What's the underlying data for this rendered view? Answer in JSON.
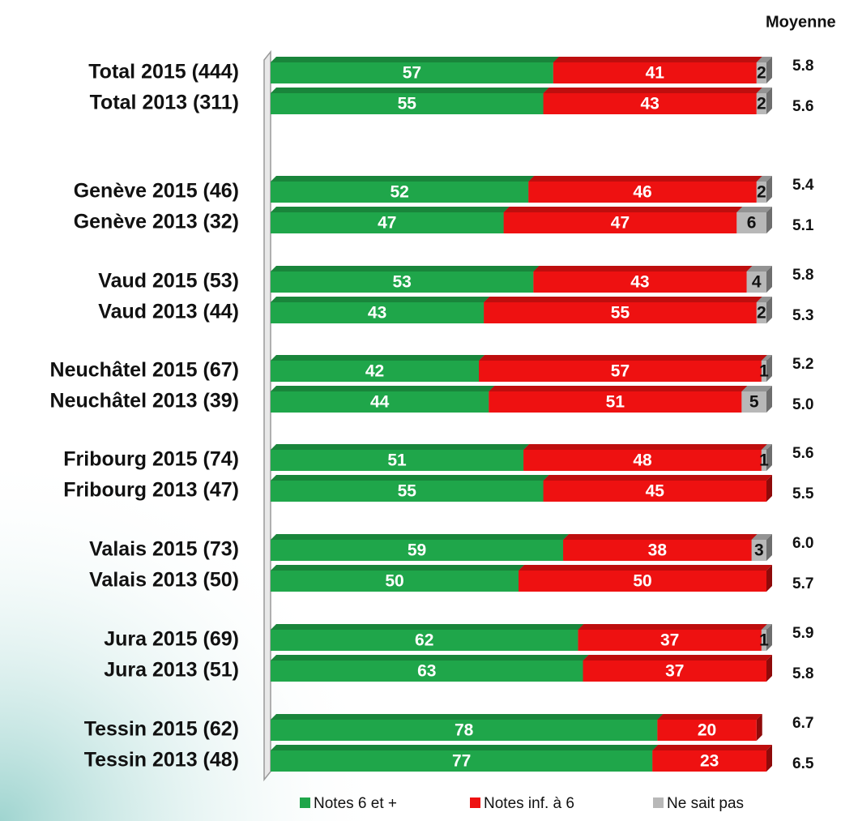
{
  "chart_data": {
    "type": "stacked_bar_horizontal",
    "categories": [
      "Total 2015 (444)",
      "Total 2013 (311)",
      "Genève 2015 (46)",
      "Genève 2013 (32)",
      "Vaud 2015 (53)",
      "Vaud 2013 (44)",
      "Neuchâtel 2015 (67)",
      "Neuchâtel 2013 (39)",
      "Fribourg 2015 (74)",
      "Fribourg 2013 (47)",
      "Valais 2015 (73)",
      "Valais 2013 (50)",
      "Jura 2015 (69)",
      "Jura 2013 (51)",
      "Tessin 2015 (62)",
      "Tessin 2013 (48)"
    ],
    "series": [
      {
        "name": "Notes 6 et +",
        "color": "#1fa64a",
        "values": [
          57,
          55,
          52,
          47,
          53,
          43,
          42,
          44,
          51,
          55,
          59,
          50,
          62,
          63,
          78,
          77
        ]
      },
      {
        "name": "Notes inf. à 6",
        "color": "#ee1111",
        "values": [
          41,
          43,
          46,
          47,
          43,
          55,
          57,
          51,
          48,
          45,
          38,
          50,
          37,
          37,
          20,
          23
        ]
      },
      {
        "name": "Ne sait pas",
        "color": "#b8b8b8",
        "values": [
          2,
          2,
          2,
          6,
          4,
          2,
          1,
          5,
          1,
          null,
          3,
          null,
          1,
          null,
          null,
          null
        ]
      }
    ],
    "xlim": [
      0,
      100
    ],
    "average": {
      "title": "Moyenne",
      "values": [
        5.8,
        5.6,
        5.4,
        5.1,
        5.8,
        5.3,
        5.2,
        5.0,
        5.6,
        5.5,
        6.0,
        5.7,
        5.9,
        5.8,
        6.7,
        6.5
      ],
      "value_labels": [
        "5.8",
        "5.6",
        "5.4",
        "5.1",
        "5.8",
        "5.3",
        "5.2",
        "5.0",
        "5.6",
        "5.5",
        "6.0",
        "5.7",
        "5.9",
        "5.8",
        "6.7",
        "6.5"
      ]
    }
  }
}
